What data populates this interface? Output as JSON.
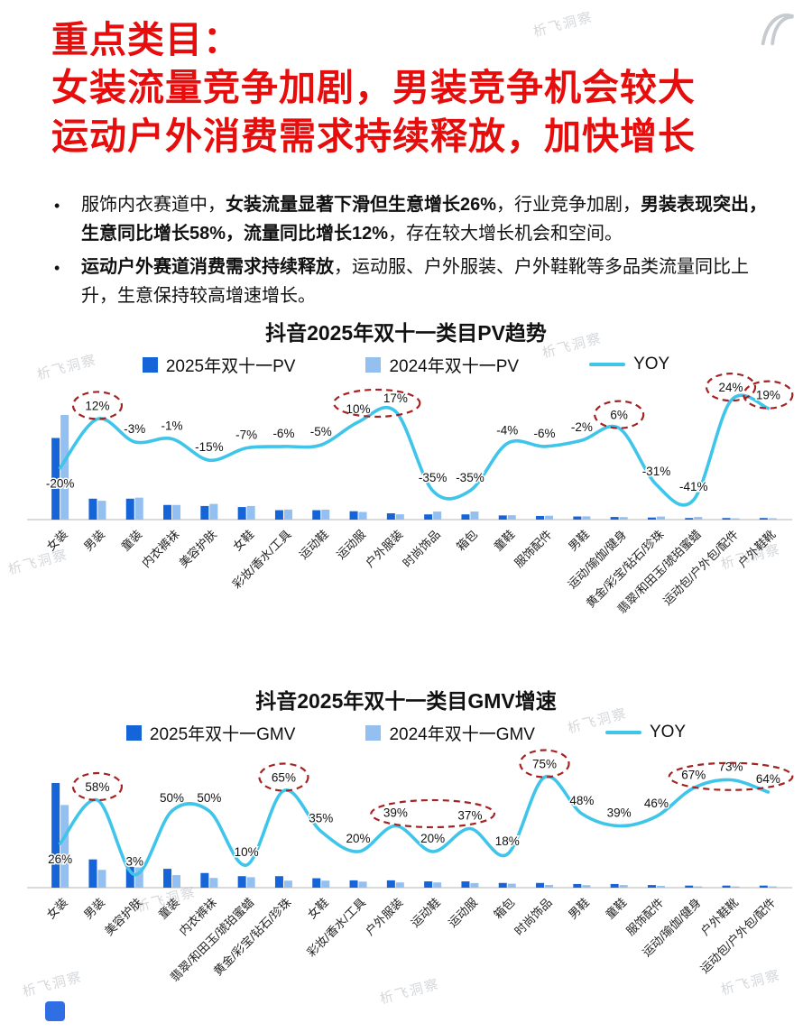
{
  "page": {
    "title_lines": [
      "重点类目：",
      "女装流量竞争加剧，男装竞争机会较大",
      "运动户外消费需求持续释放，加快增长"
    ]
  },
  "bullets": [
    {
      "segments": [
        {
          "text": "服饰内衣赛道中，",
          "bold": false
        },
        {
          "text": "女装流量显著下滑但生意增长26%",
          "bold": true
        },
        {
          "text": "，行业竞争加剧，",
          "bold": false
        },
        {
          "text": "男装表现突出，生意同比增长58%，流量同比增长12%",
          "bold": true
        },
        {
          "text": "，存在较大增长机会和空间。",
          "bold": false
        }
      ]
    },
    {
      "segments": [
        {
          "text": "运动户外赛道消费需求持续释放",
          "bold": true
        },
        {
          "text": "，运动服、户外服装、户外鞋靴等多品类流量同比上升，生意保持较高增速增长。",
          "bold": false
        }
      ]
    }
  ],
  "watermark": {
    "text": "析飞洞察"
  },
  "colors": {
    "title": "#e60d0d",
    "bar_2025": "#1565d8",
    "bar_2024": "#93c0f0",
    "line": "#3fc4ea",
    "highlight": "#a62121",
    "footer_square": "#2f6fe3",
    "axis": "#b5b5b5"
  },
  "chart_data": [
    {
      "type": "bar",
      "title": "抖音2025年双十一类目PV趋势",
      "xlabel": "",
      "ylabel": "",
      "note": "bars are relative PV index; YOY line in percent",
      "yoy_axis_range": [
        -48,
        30
      ],
      "legend_position": "top",
      "categories": [
        "女装",
        "男装",
        "童装",
        "内衣裤袜",
        "美容护肤",
        "女鞋",
        "彩妆/香水/工具",
        "运动鞋",
        "运动服",
        "户外服装",
        "时尚饰品",
        "箱包",
        "童鞋",
        "服饰配件",
        "男鞋",
        "运动/瑜伽/健身",
        "黄金/彩宝/钻石/珍珠",
        "翡翠/和田玉/琥珀蜜蜡",
        "运动包/户外包/配件",
        "户外鞋靴"
      ],
      "series": [
        {
          "name": "2025年双十一PV",
          "type": "bar",
          "values": [
            78,
            20,
            20,
            14,
            13,
            12,
            9,
            9,
            8,
            6,
            5,
            5,
            4,
            3.5,
            3,
            2.5,
            2,
            1.5,
            1.5,
            1.5
          ]
        },
        {
          "name": "2024年双十一PV",
          "type": "bar",
          "values": [
            100,
            18,
            21,
            14,
            15,
            13,
            9.6,
            9.5,
            7.3,
            5.1,
            7.7,
            7.7,
            4.2,
            3.7,
            3.1,
            2.4,
            2.9,
            2.5,
            1.2,
            1.3
          ]
        },
        {
          "name": "YOY",
          "type": "line",
          "values": [
            -20,
            12,
            -3,
            -1,
            -15,
            -7,
            -6,
            -5,
            10,
            17,
            -35,
            -35,
            -4,
            -6,
            -2,
            6,
            -31,
            -41,
            24,
            19
          ],
          "labels": [
            "-20%",
            "12%",
            "-3%",
            "-1%",
            "-15%",
            "-7%",
            "-6%",
            "-5%",
            "10%",
            "17%",
            "-35%",
            "-35%",
            "-4%",
            "-6%",
            "-2%",
            "6%",
            "-31%",
            "-41%",
            "24%",
            "19%"
          ]
        }
      ],
      "highlights": [
        [
          1,
          1
        ],
        [
          8,
          9
        ],
        [
          15,
          15
        ],
        [
          18,
          18
        ],
        [
          19,
          19
        ]
      ]
    },
    {
      "type": "bar",
      "title": "抖音2025年双十一类目GMV增速",
      "xlabel": "",
      "ylabel": "",
      "note": "bars are relative GMV index; YOY line in percent",
      "yoy_axis_range": [
        0,
        88
      ],
      "legend_position": "top",
      "categories": [
        "女装",
        "男装",
        "美容护肤",
        "童装",
        "内衣裤袜",
        "翡翠/和田玉/琥珀蜜蜡",
        "黄金/彩宝/钻石/珍珠",
        "女鞋",
        "彩妆/香水/工具",
        "户外服装",
        "运动鞋",
        "运动服",
        "箱包",
        "时尚饰品",
        "男鞋",
        "童鞋",
        "服饰配件",
        "运动/瑜伽/健身",
        "户外鞋靴",
        "运动包/户外包/配件"
      ],
      "series": [
        {
          "name": "2025年双十一GMV",
          "type": "bar",
          "values": [
            100,
            27,
            20,
            18,
            14,
            11,
            11,
            9,
            7,
            7,
            6,
            6,
            4.5,
            4.5,
            3.5,
            3.5,
            2.5,
            2,
            2,
            2
          ]
        },
        {
          "name": "2024年双十一GMV",
          "type": "bar",
          "values": [
            79,
            17,
            19.4,
            12,
            9.3,
            10,
            6.7,
            6.7,
            5.8,
            5,
            5,
            4.4,
            3.8,
            2.6,
            2.4,
            2.5,
            1.7,
            1.2,
            1.15,
            1.2
          ]
        },
        {
          "name": "YOY",
          "type": "line",
          "values": [
            26,
            58,
            3,
            50,
            50,
            10,
            65,
            35,
            20,
            39,
            20,
            37,
            18,
            75,
            48,
            39,
            46,
            67,
            73,
            64
          ],
          "labels": [
            "26%",
            "58%",
            "3%",
            "50%",
            "50%",
            "10%",
            "65%",
            "35%",
            "20%",
            "39%",
            "20%",
            "37%",
            "18%",
            "75%",
            "48%",
            "39%",
            "46%",
            "67%",
            "73%",
            "64%"
          ]
        }
      ],
      "highlights": [
        [
          1,
          1
        ],
        [
          6,
          6
        ],
        [
          9,
          11
        ],
        [
          13,
          13
        ],
        [
          17,
          19
        ]
      ]
    }
  ]
}
